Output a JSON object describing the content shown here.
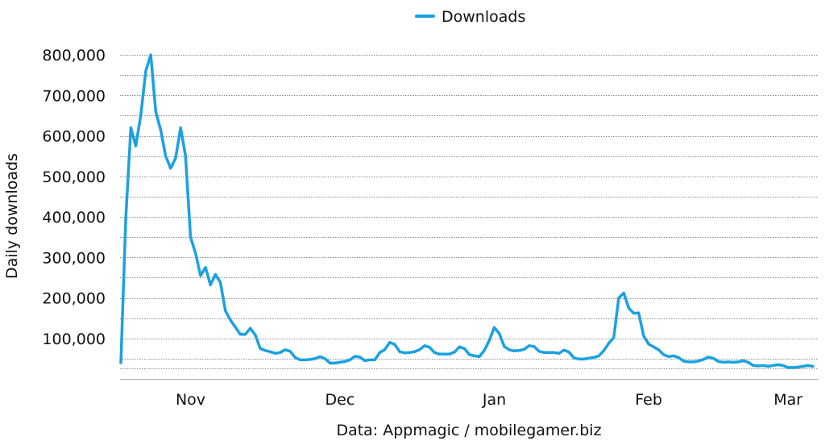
{
  "chart_data": {
    "type": "line",
    "xlabel": "",
    "ylabel": "Daily downloads",
    "source_note": "Data: Appmagic / mobilegamer.biz",
    "ylim": [
      0,
      800000
    ],
    "yticks": [
      100000,
      200000,
      300000,
      400000,
      500000,
      600000,
      700000,
      800000
    ],
    "ytick_labels": [
      "100,000",
      "200,000",
      "300,000",
      "400,000",
      "500,000",
      "600,000",
      "700,000",
      "800,000"
    ],
    "xticks": [
      {
        "label": "Nov",
        "day": 14
      },
      {
        "label": "Dec",
        "day": 44
      },
      {
        "label": "Jan",
        "day": 75
      },
      {
        "label": "Feb",
        "day": 106
      },
      {
        "label": "Mar",
        "day": 134
      }
    ],
    "xlim": [
      0,
      137
    ],
    "grid": true,
    "legend_position": "top-center",
    "series": [
      {
        "name": "Downloads",
        "color": "#1ba1e2",
        "points": [
          [
            0,
            40000
          ],
          [
            1,
            400000
          ],
          [
            2,
            620000
          ],
          [
            3,
            575000
          ],
          [
            4,
            650000
          ],
          [
            5,
            760000
          ],
          [
            6,
            800000
          ],
          [
            7,
            660000
          ],
          [
            8,
            615000
          ],
          [
            9,
            550000
          ],
          [
            10,
            520000
          ],
          [
            11,
            545000
          ],
          [
            12,
            620000
          ],
          [
            13,
            550000
          ],
          [
            14,
            350000
          ],
          [
            15,
            310000
          ],
          [
            16,
            255000
          ],
          [
            17,
            275000
          ],
          [
            18,
            232000
          ],
          [
            19,
            258000
          ],
          [
            20,
            238000
          ],
          [
            21,
            168000
          ],
          [
            22,
            145000
          ],
          [
            23,
            128000
          ],
          [
            24,
            110000
          ],
          [
            25,
            110000
          ],
          [
            26,
            125000
          ],
          [
            27,
            108000
          ],
          [
            28,
            75000
          ],
          [
            29,
            70000
          ],
          [
            30,
            67000
          ],
          [
            31,
            63000
          ],
          [
            32,
            65000
          ],
          [
            33,
            72000
          ],
          [
            34,
            68000
          ],
          [
            35,
            53000
          ],
          [
            36,
            47000
          ],
          [
            37,
            47000
          ],
          [
            38,
            48000
          ],
          [
            39,
            50000
          ],
          [
            40,
            55000
          ],
          [
            41,
            50000
          ],
          [
            42,
            39000
          ],
          [
            43,
            39000
          ],
          [
            44,
            41000
          ],
          [
            45,
            43000
          ],
          [
            46,
            47000
          ],
          [
            47,
            56000
          ],
          [
            48,
            54000
          ],
          [
            49,
            45000
          ],
          [
            50,
            47000
          ],
          [
            51,
            47000
          ],
          [
            52,
            65000
          ],
          [
            53,
            72000
          ],
          [
            54,
            90000
          ],
          [
            55,
            85000
          ],
          [
            56,
            67000
          ],
          [
            57,
            64000
          ],
          [
            58,
            65000
          ],
          [
            59,
            67000
          ],
          [
            60,
            72000
          ],
          [
            61,
            82000
          ],
          [
            62,
            78000
          ],
          [
            63,
            65000
          ],
          [
            64,
            61000
          ],
          [
            65,
            61000
          ],
          [
            66,
            61000
          ],
          [
            67,
            66000
          ],
          [
            68,
            79000
          ],
          [
            69,
            75000
          ],
          [
            70,
            60000
          ],
          [
            71,
            57000
          ],
          [
            72,
            55000
          ],
          [
            73,
            70000
          ],
          [
            74,
            95000
          ],
          [
            75,
            127000
          ],
          [
            76,
            112000
          ],
          [
            77,
            80000
          ],
          [
            78,
            72000
          ],
          [
            79,
            69000
          ],
          [
            80,
            70000
          ],
          [
            81,
            73000
          ],
          [
            82,
            82000
          ],
          [
            83,
            80000
          ],
          [
            84,
            68000
          ],
          [
            85,
            65000
          ],
          [
            86,
            65000
          ],
          [
            87,
            65000
          ],
          [
            88,
            63000
          ],
          [
            89,
            71000
          ],
          [
            90,
            66000
          ],
          [
            91,
            52000
          ],
          [
            92,
            49000
          ],
          [
            93,
            49000
          ],
          [
            94,
            51000
          ],
          [
            95,
            53000
          ],
          [
            96,
            57000
          ],
          [
            97,
            70000
          ],
          [
            98,
            88000
          ],
          [
            99,
            102000
          ],
          [
            100,
            200000
          ],
          [
            101,
            212000
          ],
          [
            102,
            175000
          ],
          [
            103,
            162000
          ],
          [
            104,
            163000
          ],
          [
            105,
            106000
          ],
          [
            106,
            86000
          ],
          [
            107,
            79000
          ],
          [
            108,
            72000
          ],
          [
            109,
            60000
          ],
          [
            110,
            55000
          ],
          [
            111,
            57000
          ],
          [
            112,
            53000
          ],
          [
            113,
            44000
          ],
          [
            114,
            42000
          ],
          [
            115,
            42000
          ],
          [
            116,
            44000
          ],
          [
            117,
            48000
          ],
          [
            118,
            54000
          ],
          [
            119,
            51000
          ],
          [
            120,
            43000
          ],
          [
            121,
            41000
          ],
          [
            122,
            42000
          ],
          [
            123,
            41000
          ],
          [
            124,
            42000
          ],
          [
            125,
            45000
          ],
          [
            126,
            41000
          ],
          [
            127,
            33000
          ],
          [
            128,
            32000
          ],
          [
            129,
            33000
          ],
          [
            130,
            31000
          ],
          [
            131,
            33000
          ],
          [
            132,
            35000
          ],
          [
            133,
            33000
          ],
          [
            134,
            28000
          ],
          [
            135,
            28000
          ],
          [
            136,
            29000
          ],
          [
            137,
            31000
          ],
          [
            138,
            33000
          ],
          [
            139,
            31000
          ]
        ]
      }
    ]
  }
}
